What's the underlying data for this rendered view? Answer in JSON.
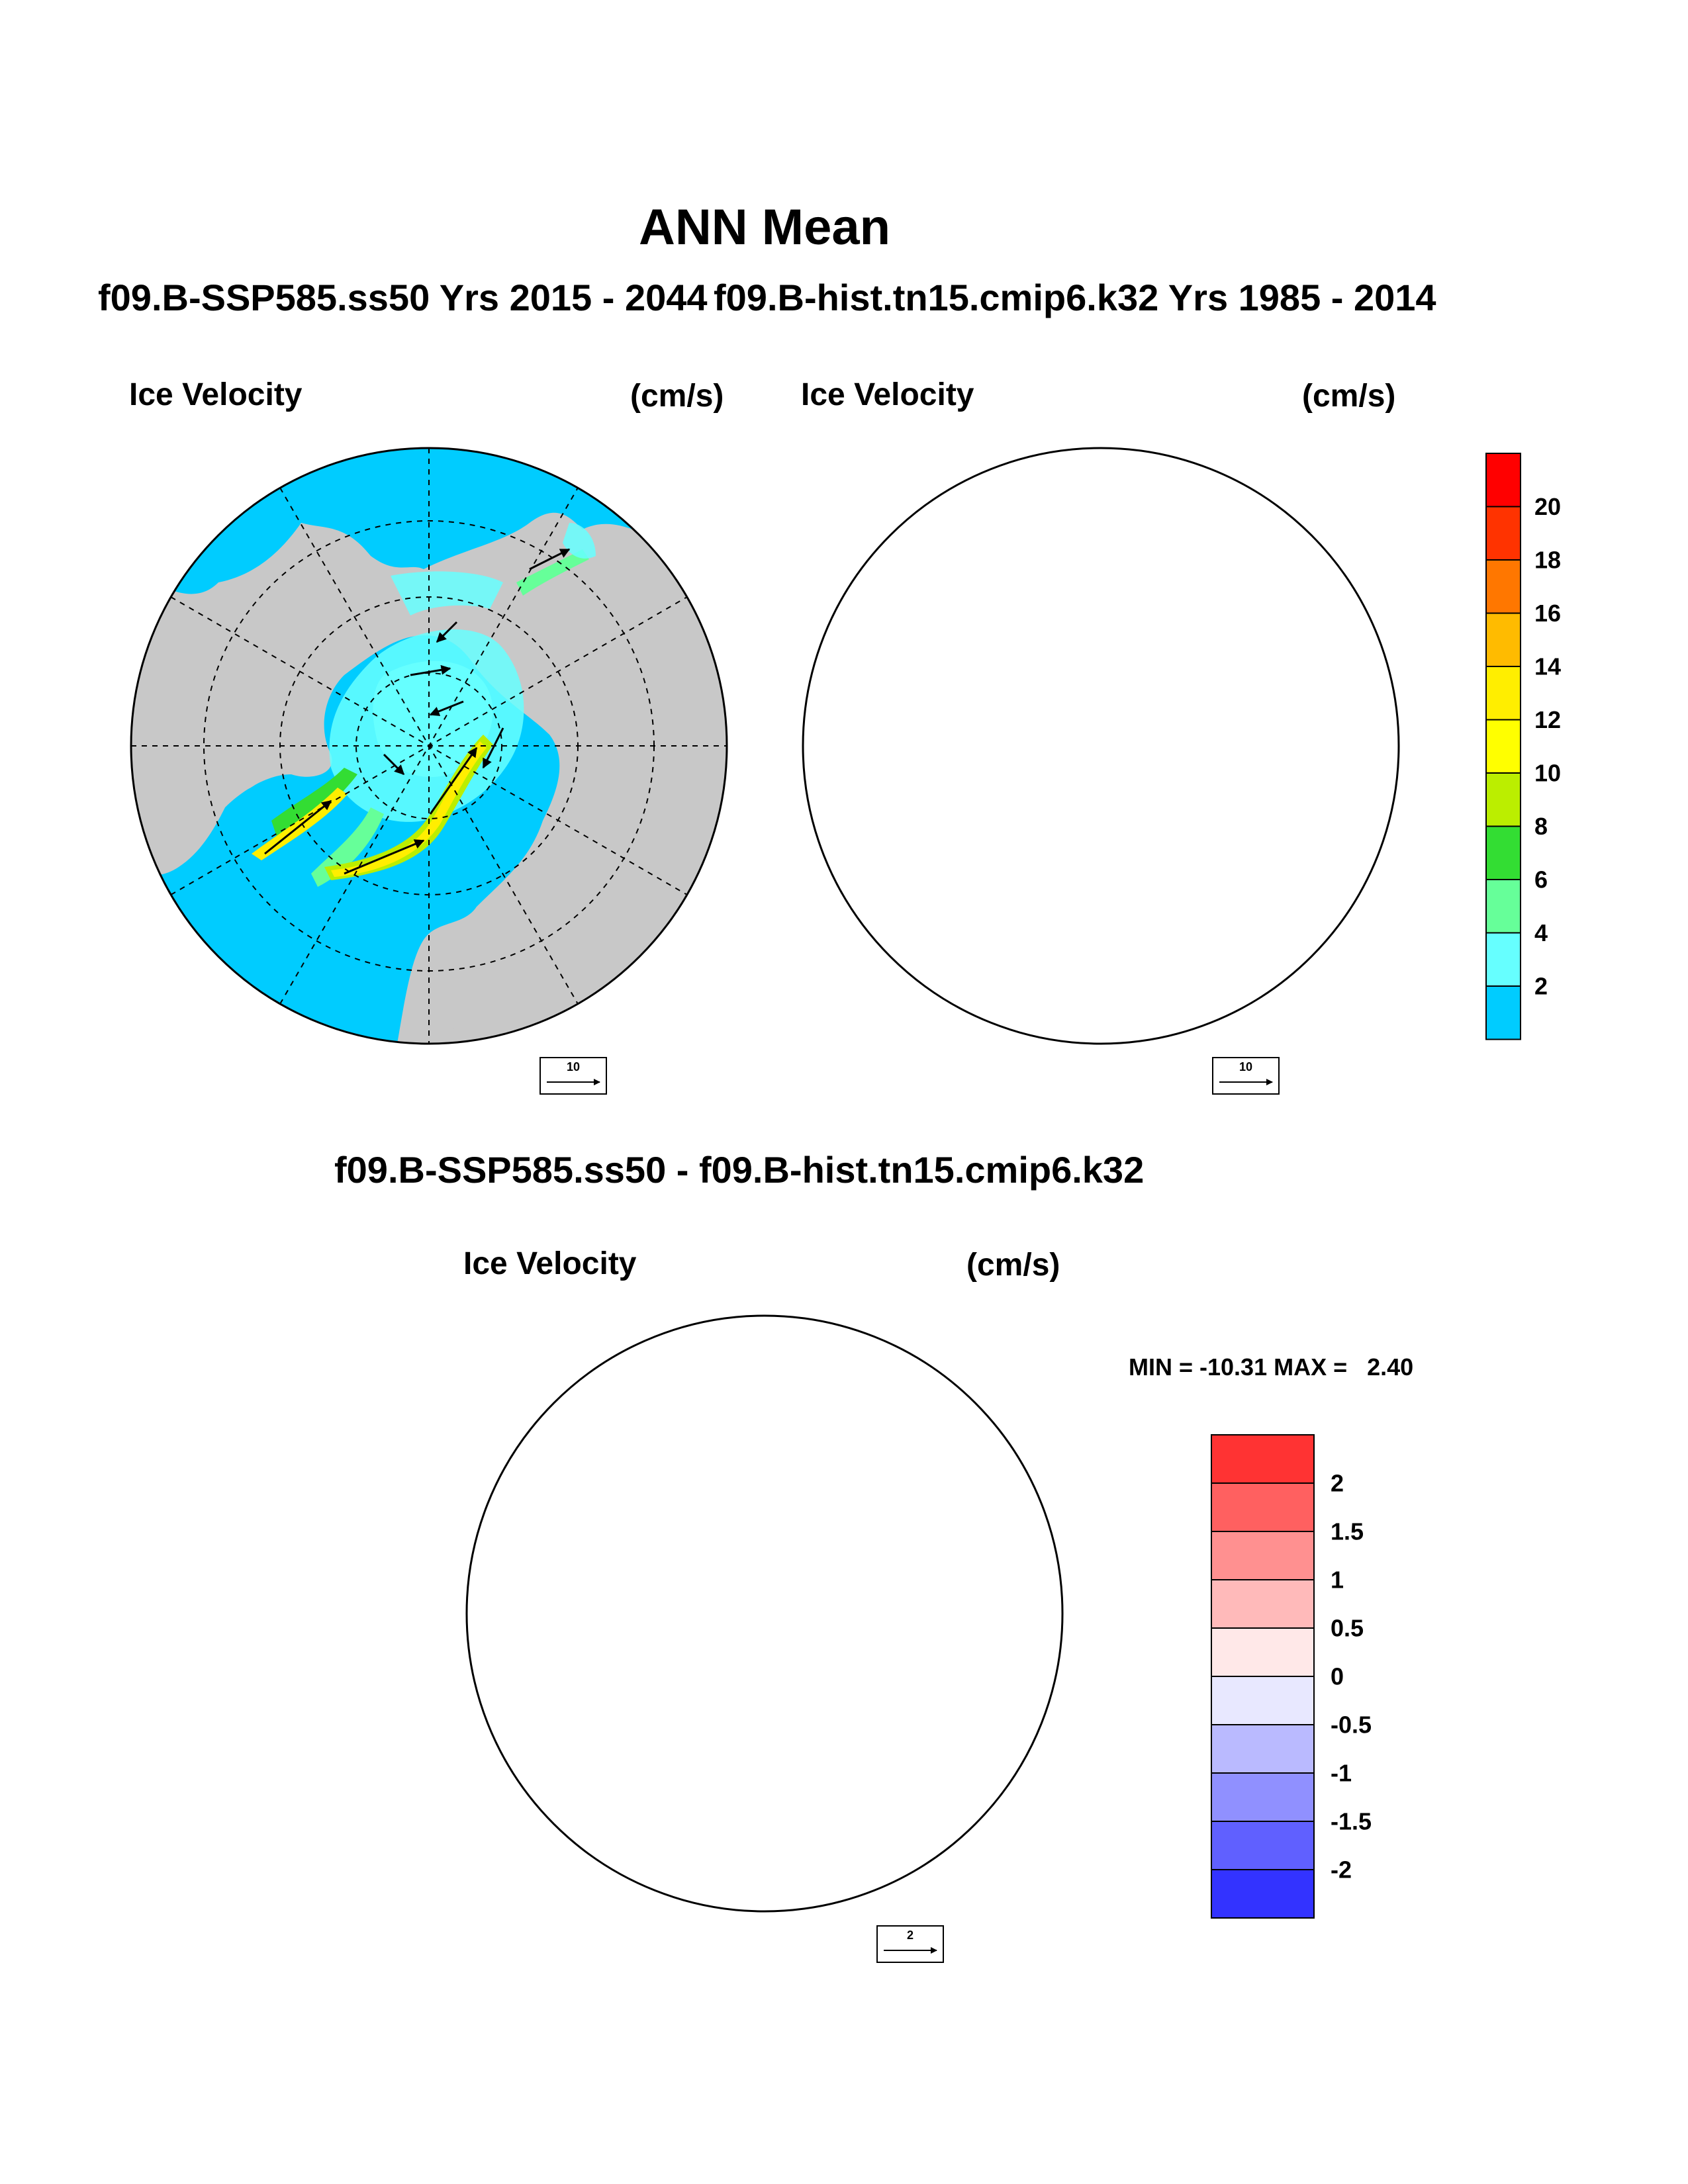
{
  "title": "ANN Mean",
  "panels": [
    {
      "id": "exp1",
      "case_title": "f09.B-SSP585.ss50  Yrs 2015 - 2044",
      "variable": "Ice Velocity",
      "units": "(cm/s)",
      "reference_vector": "10"
    },
    {
      "id": "exp2",
      "case_title": "f09.B-hist.tn15.cmip6.k32  Yrs 1985 - 2014",
      "variable": "Ice Velocity",
      "units": "(cm/s)",
      "reference_vector": "10"
    }
  ],
  "difference": {
    "case_title": "f09.B-SSP585.ss50 - f09.B-hist.tn15.cmip6.k32",
    "variable": "Ice Velocity",
    "units": "(cm/s)",
    "reference_vector": "2",
    "stats": "MIN = -10.31 MAX =   2.40"
  },
  "colorbars": {
    "speed": {
      "labels": [
        "20",
        "18",
        "16",
        "14",
        "12",
        "10",
        "8",
        "6",
        "4",
        "2"
      ],
      "colors": [
        "#ff0000",
        "#ff3300",
        "#ff7700",
        "#ffbb00",
        "#ffee00",
        "#ffff00",
        "#bbee00",
        "#33dd33",
        "#66ff99",
        "#66ffff",
        "#00ccff"
      ]
    },
    "diff": {
      "labels": [
        "2",
        "1.5",
        "1",
        "0.5",
        "0",
        "-0.5",
        "-1",
        "-1.5",
        "-2"
      ],
      "colors": [
        "#ff3333",
        "#ff6060",
        "#ff9090",
        "#ffbaba",
        "#ffe8e8",
        "#e8e8ff",
        "#babaff",
        "#9090ff",
        "#6060ff",
        "#3333ff"
      ]
    }
  },
  "map_colors": {
    "land": "#c8c8c8",
    "open_ocean_speed": "#00ccff",
    "open_ocean_diff": "#ffe8e8"
  }
}
